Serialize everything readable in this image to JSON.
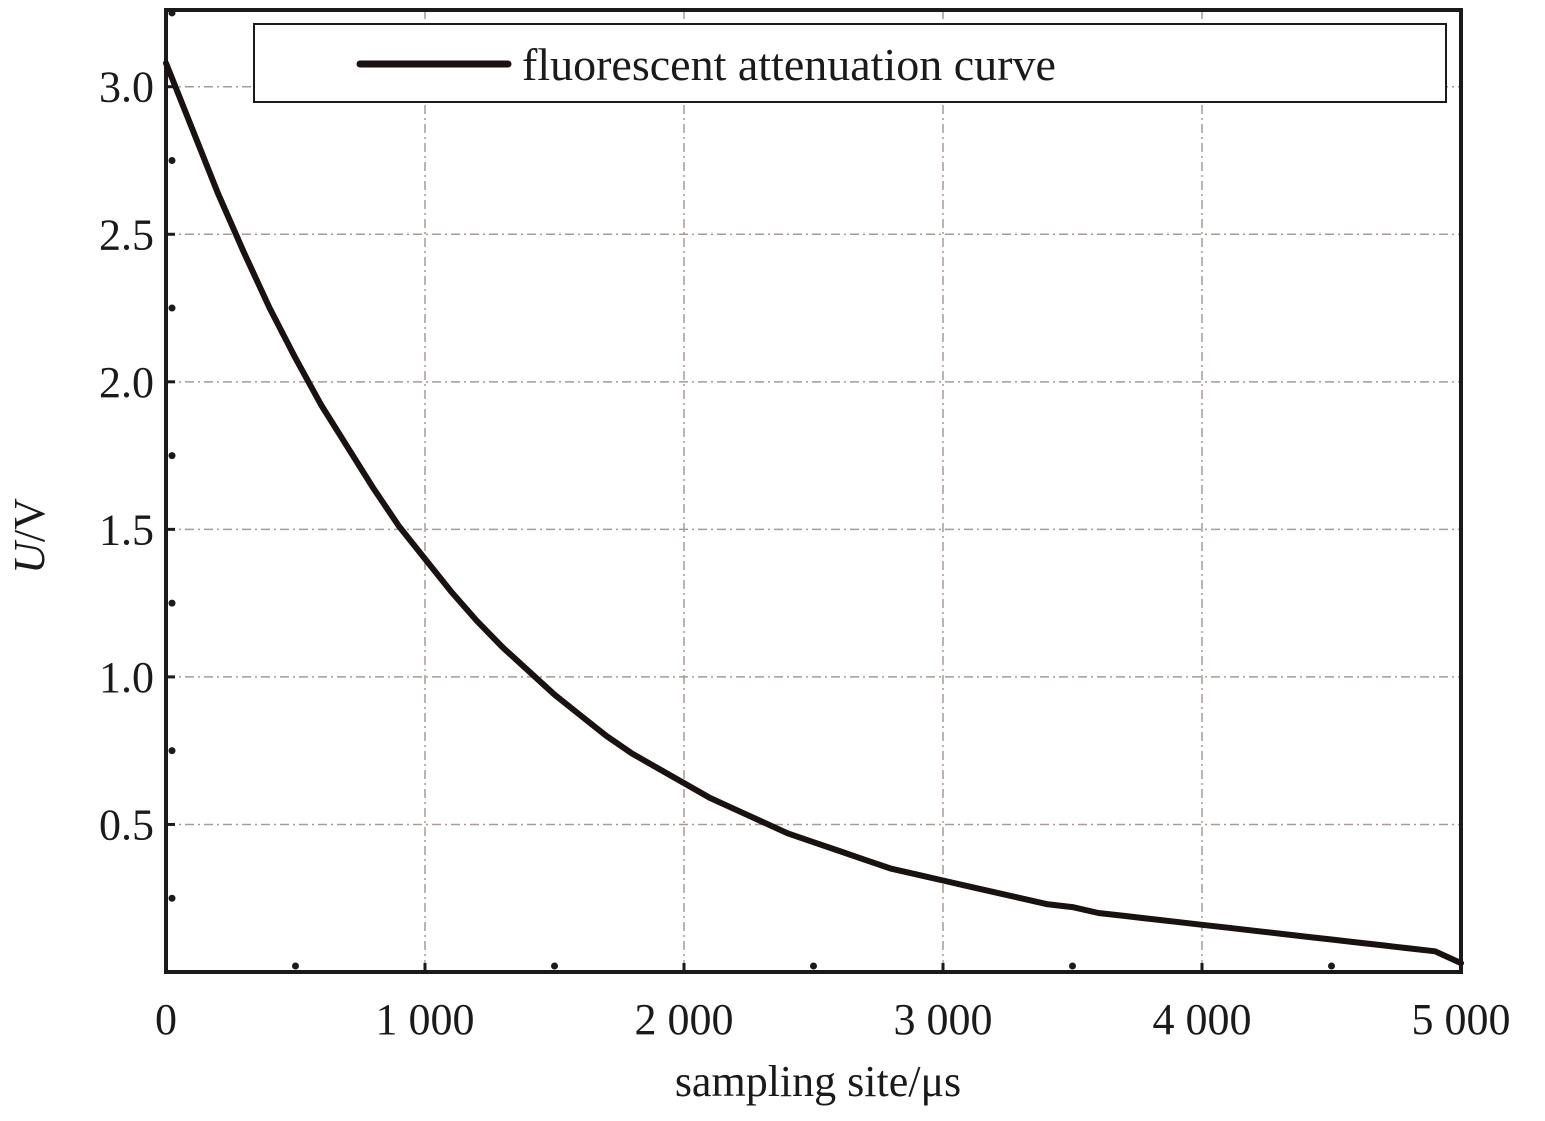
{
  "chart_data": {
    "type": "line",
    "title": "",
    "xlabel": "sampling site/μs",
    "ylabel_italic": "U",
    "ylabel_unit": "/V",
    "xlim": [
      0,
      5000
    ],
    "ylim": [
      0,
      3.26
    ],
    "xticks": [
      0,
      1000,
      2000,
      3000,
      4000,
      5000
    ],
    "xtick_labels": [
      "0",
      "1 000",
      "2 000",
      "3 000",
      "4 000",
      "5 000"
    ],
    "yticks": [
      0.5,
      1.0,
      1.5,
      2.0,
      2.5,
      3.0
    ],
    "ytick_labels": [
      "0.5",
      "1.0",
      "1.5",
      "2.0",
      "2.5",
      "3.0"
    ],
    "grid": true,
    "legend_position": "top",
    "series": [
      {
        "name": "fluorescent attenuation curve",
        "color": "#1a1111",
        "x": [
          0,
          100,
          200,
          300,
          400,
          500,
          600,
          700,
          800,
          900,
          1000,
          1100,
          1200,
          1300,
          1400,
          1500,
          1600,
          1700,
          1800,
          1900,
          2000,
          2100,
          2200,
          2300,
          2400,
          2500,
          2600,
          2700,
          2800,
          2900,
          3000,
          3100,
          3200,
          3300,
          3400,
          3500,
          3600,
          3700,
          3800,
          3900,
          4000,
          4100,
          4200,
          4300,
          4400,
          4500,
          4600,
          4700,
          4800,
          4900,
          5000
        ],
        "y": [
          3.08,
          2.86,
          2.64,
          2.44,
          2.25,
          2.08,
          1.92,
          1.78,
          1.64,
          1.51,
          1.4,
          1.29,
          1.19,
          1.1,
          1.02,
          0.94,
          0.87,
          0.8,
          0.74,
          0.69,
          0.64,
          0.59,
          0.55,
          0.51,
          0.47,
          0.44,
          0.41,
          0.38,
          0.35,
          0.33,
          0.31,
          0.29,
          0.27,
          0.25,
          0.23,
          0.22,
          0.2,
          0.19,
          0.18,
          0.17,
          0.16,
          0.15,
          0.14,
          0.13,
          0.12,
          0.11,
          0.1,
          0.09,
          0.08,
          0.07,
          0.03
        ]
      }
    ]
  }
}
